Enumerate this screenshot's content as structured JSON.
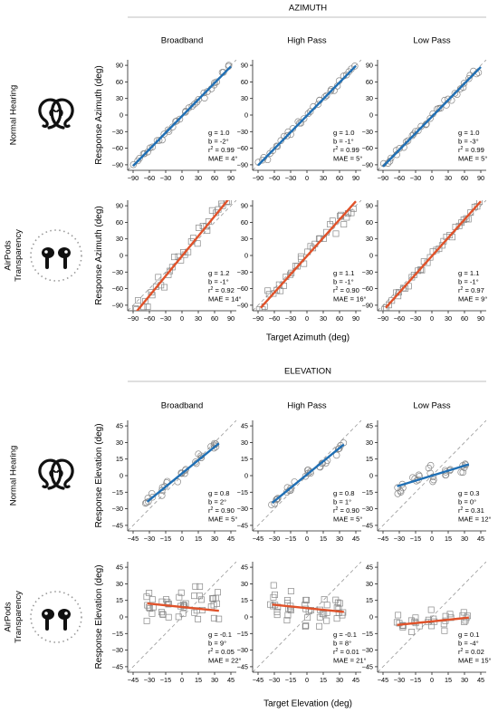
{
  "sections": [
    {
      "title": "AZIMUTH",
      "xlabel": "Target Azimuth (deg)"
    },
    {
      "title": "ELEVATION",
      "xlabel": "Target Elevation (deg)"
    }
  ],
  "columns": [
    "Broadband",
    "High Pass",
    "Low Pass"
  ],
  "rows": [
    {
      "label": [
        "Normal Hearing"
      ],
      "icon": "ears-icon",
      "ylabel": "Response Azimuth (deg)"
    },
    {
      "label": [
        "AirPods",
        "Transparency"
      ],
      "icon": "airpods-icon",
      "ylabel": "Response Azimuth (deg)"
    },
    {
      "label": [
        "Normal Hearing"
      ],
      "icon": "ears-icon",
      "ylabel": "Response Elevation (deg)"
    },
    {
      "label": [
        "AirPods",
        "Transparency"
      ],
      "icon": "airpods-icon",
      "ylabel": "Response Elevation (deg)"
    }
  ],
  "colors": {
    "normal": "#1f6fb4",
    "airpods": "#e0522a",
    "marker": "#888888",
    "diagonal": "#999999"
  },
  "chart_data": [
    {
      "type": "scatter",
      "section": "azimuth",
      "row": "Normal Hearing",
      "column": "Broadband",
      "marker": "circle",
      "xlim": [
        -100,
        100
      ],
      "ylim": [
        -100,
        100
      ],
      "xticks": [
        -90,
        -60,
        -30,
        0,
        30,
        60,
        90
      ],
      "yticks": [
        -90,
        -60,
        -30,
        0,
        30,
        60,
        90
      ],
      "fit": {
        "slope": 1.0,
        "intercept": -2,
        "xrange": [
          -90,
          90
        ]
      },
      "stats": [
        "g = 1.0",
        "b = -2°",
        "r² = 0.99",
        "MAE = 4°"
      ]
    },
    {
      "type": "scatter",
      "section": "azimuth",
      "row": "Normal Hearing",
      "column": "High Pass",
      "marker": "circle",
      "xlim": [
        -100,
        100
      ],
      "ylim": [
        -100,
        100
      ],
      "xticks": [
        -90,
        -60,
        -30,
        0,
        30,
        60,
        90
      ],
      "yticks": [
        -90,
        -60,
        -30,
        0,
        30,
        60,
        90
      ],
      "fit": {
        "slope": 1.0,
        "intercept": -1,
        "xrange": [
          -90,
          90
        ]
      },
      "stats": [
        "g = 1.0",
        "b = -1°",
        "r² = 0.99",
        "MAE = 5°"
      ]
    },
    {
      "type": "scatter",
      "section": "azimuth",
      "row": "Normal Hearing",
      "column": "Low Pass",
      "marker": "circle",
      "xlim": [
        -100,
        100
      ],
      "ylim": [
        -100,
        100
      ],
      "xticks": [
        -90,
        -60,
        -30,
        0,
        30,
        60,
        90
      ],
      "yticks": [
        -90,
        -60,
        -30,
        0,
        30,
        60,
        90
      ],
      "fit": {
        "slope": 1.0,
        "intercept": -3,
        "xrange": [
          -90,
          90
        ]
      },
      "stats": [
        "g = 1.0",
        "b = -3°",
        "r² = 0.99",
        "MAE = 5°"
      ]
    },
    {
      "type": "scatter",
      "section": "azimuth",
      "row": "AirPods Transparency",
      "column": "Broadband",
      "marker": "square",
      "xlim": [
        -100,
        100
      ],
      "ylim": [
        -100,
        100
      ],
      "xticks": [
        -90,
        -60,
        -30,
        0,
        30,
        60,
        90
      ],
      "yticks": [
        -90,
        -60,
        -30,
        0,
        30,
        60,
        90
      ],
      "fit": {
        "slope": 1.2,
        "intercept": -1,
        "xrange": [
          -85,
          90
        ]
      },
      "stats": [
        "g = 1.2",
        "b = -1°",
        "r² = 0.92",
        "MAE = 14°"
      ]
    },
    {
      "type": "scatter",
      "section": "azimuth",
      "row": "AirPods Transparency",
      "column": "High Pass",
      "marker": "square",
      "xlim": [
        -100,
        100
      ],
      "ylim": [
        -100,
        100
      ],
      "xticks": [
        -90,
        -60,
        -30,
        0,
        30,
        60,
        90
      ],
      "yticks": [
        -90,
        -60,
        -30,
        0,
        30,
        60,
        90
      ],
      "fit": {
        "slope": 1.1,
        "intercept": -1,
        "xrange": [
          -85,
          90
        ]
      },
      "stats": [
        "g = 1.1",
        "b = -1°",
        "r² = 0.90",
        "MAE = 16°"
      ]
    },
    {
      "type": "scatter",
      "section": "azimuth",
      "row": "AirPods Transparency",
      "column": "Low Pass",
      "marker": "square",
      "xlim": [
        -100,
        100
      ],
      "ylim": [
        -100,
        100
      ],
      "xticks": [
        -90,
        -60,
        -30,
        0,
        30,
        60,
        90
      ],
      "yticks": [
        -90,
        -60,
        -30,
        0,
        30,
        60,
        90
      ],
      "fit": {
        "slope": 1.1,
        "intercept": -1,
        "xrange": [
          -85,
          90
        ]
      },
      "stats": [
        "g = 1.1",
        "b = -1°",
        "r² = 0.97",
        "MAE = 9°"
      ]
    },
    {
      "type": "scatter",
      "section": "elevation",
      "row": "Normal Hearing",
      "column": "Broadband",
      "marker": "circle",
      "xlim": [
        -50,
        50
      ],
      "ylim": [
        -50,
        50
      ],
      "xticks": [
        -45,
        -30,
        -15,
        0,
        15,
        30,
        45
      ],
      "yticks": [
        -45,
        -30,
        -15,
        0,
        15,
        30,
        45
      ],
      "fit": {
        "slope": 0.8,
        "intercept": 2,
        "xrange": [
          -32,
          34
        ]
      },
      "stats": [
        "g = 0.8",
        "b = 2°",
        "r² = 0.90",
        "MAE = 5°"
      ]
    },
    {
      "type": "scatter",
      "section": "elevation",
      "row": "Normal Hearing",
      "column": "High Pass",
      "marker": "circle",
      "xlim": [
        -50,
        50
      ],
      "ylim": [
        -50,
        50
      ],
      "xticks": [
        -45,
        -30,
        -15,
        0,
        15,
        30,
        45
      ],
      "yticks": [
        -45,
        -30,
        -15,
        0,
        15,
        30,
        45
      ],
      "fit": {
        "slope": 0.8,
        "intercept": 1,
        "xrange": [
          -32,
          34
        ]
      },
      "stats": [
        "g = 0.8",
        "b = 1°",
        "r² = 0.90",
        "MAE = 5°"
      ]
    },
    {
      "type": "scatter",
      "section": "elevation",
      "row": "Normal Hearing",
      "column": "Low Pass",
      "marker": "circle",
      "xlim": [
        -50,
        50
      ],
      "ylim": [
        -50,
        50
      ],
      "xticks": [
        -45,
        -30,
        -15,
        0,
        15,
        30,
        45
      ],
      "yticks": [
        -45,
        -30,
        -15,
        0,
        15,
        30,
        45
      ],
      "fit": {
        "slope": 0.3,
        "intercept": 0,
        "xrange": [
          -32,
          34
        ]
      },
      "stats": [
        "g = 0.3",
        "b = 0°",
        "r² = 0.31",
        "MAE = 12°"
      ]
    },
    {
      "type": "scatter",
      "section": "elevation",
      "row": "AirPods Transparency",
      "column": "Broadband",
      "marker": "square",
      "xlim": [
        -50,
        50
      ],
      "ylim": [
        -50,
        50
      ],
      "xticks": [
        -45,
        -30,
        -15,
        0,
        15,
        30,
        45
      ],
      "yticks": [
        -45,
        -30,
        -15,
        0,
        15,
        30,
        45
      ],
      "fit": {
        "slope": -0.1,
        "intercept": 9,
        "xrange": [
          -32,
          34
        ]
      },
      "stats": [
        "g = -0.1",
        "b = 9°",
        "r² = 0.05",
        "MAE = 22°"
      ]
    },
    {
      "type": "scatter",
      "section": "elevation",
      "row": "AirPods Transparency",
      "column": "High Pass",
      "marker": "square",
      "xlim": [
        -50,
        50
      ],
      "ylim": [
        -50,
        50
      ],
      "xticks": [
        -45,
        -30,
        -15,
        0,
        15,
        30,
        45
      ],
      "yticks": [
        -45,
        -30,
        -15,
        0,
        15,
        30,
        45
      ],
      "fit": {
        "slope": -0.1,
        "intercept": 8,
        "xrange": [
          -32,
          34
        ]
      },
      "stats": [
        "g = -0.1",
        "b = 8°",
        "r² = 0.01",
        "MAE = 21°"
      ]
    },
    {
      "type": "scatter",
      "section": "elevation",
      "row": "AirPods Transparency",
      "column": "Low Pass",
      "marker": "square",
      "xlim": [
        -50,
        50
      ],
      "ylim": [
        -50,
        50
      ],
      "xticks": [
        -45,
        -30,
        -15,
        0,
        15,
        30,
        45
      ],
      "yticks": [
        -45,
        -30,
        -15,
        0,
        15,
        30,
        45
      ],
      "fit": {
        "slope": 0.1,
        "intercept": -4,
        "xrange": [
          -32,
          34
        ]
      },
      "stats": [
        "g = 0.1",
        "b = -4°",
        "r² = 0.02",
        "MAE = 15°"
      ]
    }
  ]
}
